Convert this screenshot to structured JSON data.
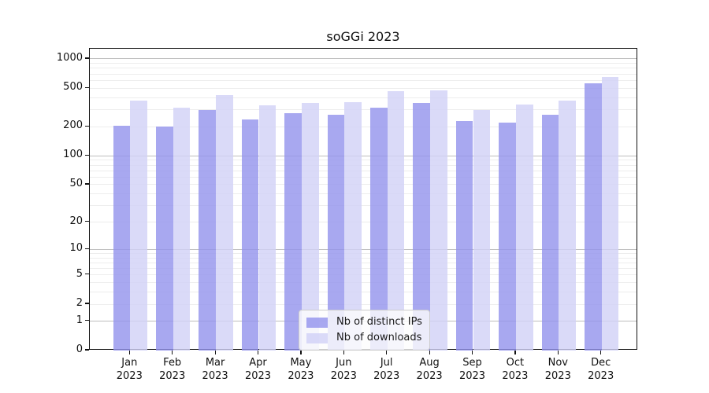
{
  "chart_data": {
    "type": "bar",
    "title": "soGGi 2023",
    "categories": [
      "Jan",
      "Feb",
      "Mar",
      "Apr",
      "May",
      "Jun",
      "Jul",
      "Aug",
      "Sep",
      "Oct",
      "Nov",
      "Dec"
    ],
    "category_year": "2023",
    "series": [
      {
        "name": "Nb of distinct IPs",
        "color": "rgba(146,146,236,0.8)",
        "values": [
          204,
          200,
          300,
          236,
          277,
          265,
          314,
          352,
          230,
          221,
          266,
          560
        ]
      },
      {
        "name": "Nb of downloads",
        "color": "rgba(209,209,246,0.8)",
        "values": [
          374,
          316,
          424,
          333,
          352,
          358,
          464,
          470,
          296,
          336,
          370,
          654
        ]
      }
    ],
    "y_scale": "log1p",
    "y_ticks": [
      1000,
      500,
      200,
      100,
      50,
      20,
      10,
      5,
      2,
      1,
      0
    ],
    "y_minor_gridlines": [
      2,
      3,
      4,
      5,
      6,
      7,
      8,
      9,
      20,
      30,
      40,
      50,
      60,
      70,
      80,
      90,
      200,
      300,
      400,
      500,
      600,
      700,
      800,
      900
    ],
    "y_major_gridlines": [
      1,
      10,
      100,
      1000
    ],
    "ylim": [
      0,
      1270
    ],
    "grid": true,
    "legend_position": "lower-center"
  },
  "colors": {
    "series_distinct_ips": "rgba(146,146,236,0.8)",
    "series_downloads": "rgba(209,209,246,0.8)",
    "major_grid": "#bdbdbd",
    "minor_grid": "#ededed",
    "spine": "#111111",
    "text": "#111111"
  }
}
